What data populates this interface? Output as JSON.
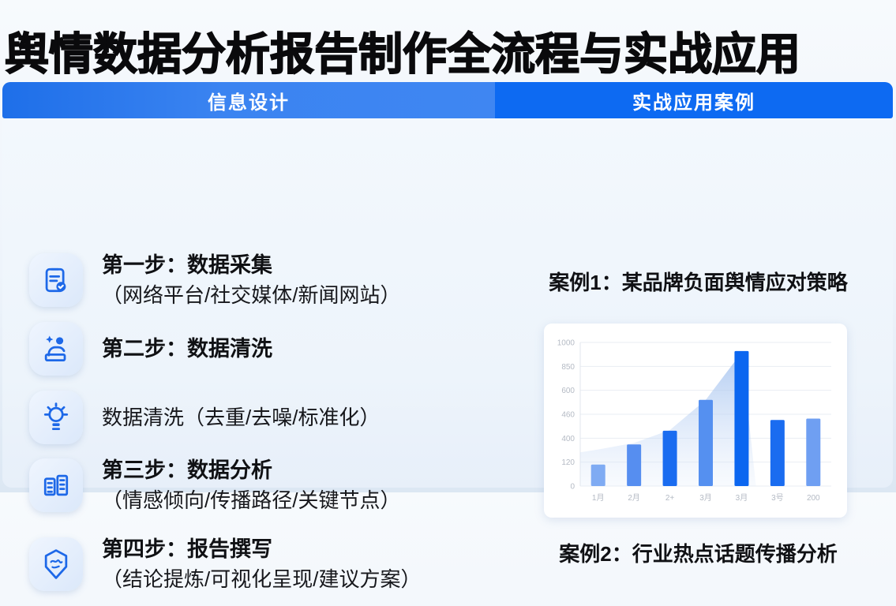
{
  "page": {
    "title": "舆情数据分析报告制作全流程与实战应用"
  },
  "left_panel": {
    "header": "信息设计",
    "steps": [
      {
        "icon": "clipboard-check-icon",
        "title": "第一步：数据采集",
        "subtitle": "（网络平台/社交媒体/新闻网站）"
      },
      {
        "icon": "person-sparkle-icon",
        "title": "第二步：数据清洗",
        "subtitle": ""
      },
      {
        "icon": "lightbulb-icon",
        "title": "数据清洗（去重/去噪/标准化）",
        "subtitle": ""
      },
      {
        "icon": "open-book-icon",
        "title": "第三步：数据分析",
        "subtitle": "（情感倾向/传播路径/关键节点）"
      },
      {
        "icon": "shield-badge-icon",
        "title": "第四步：报告撰写",
        "subtitle": "（结论提炼/可视化呈现/建议方案）"
      }
    ]
  },
  "right_panel": {
    "header": "实战应用案例",
    "case1_title": "案例1：某品牌负面舆情应对策略",
    "case2_title": "案例2：行业热点话题传播分析"
  },
  "chart_data": {
    "type": "bar",
    "title": "",
    "xlabel": "",
    "ylabel": "",
    "categories": [
      "1月",
      "2月",
      "2+",
      "3月",
      "3月",
      "3号",
      "200"
    ],
    "values": [
      150,
      290,
      385,
      600,
      940,
      460,
      470
    ],
    "bar_colors": [
      "#7fabf3",
      "#568ef0",
      "#1a6cf0",
      "#5590f0",
      "#0b66f0",
      "#1a6cf0",
      "#6f9ff2"
    ],
    "area_series": {
      "name": "trend-area",
      "profile": [
        [
          -0.5,
          235
        ],
        [
          0,
          255
        ],
        [
          1,
          300
        ],
        [
          2,
          390
        ],
        [
          3,
          600
        ],
        [
          4,
          930
        ],
        [
          4.4,
          0
        ]
      ]
    },
    "y_ticks": [
      "1000",
      "850",
      "600",
      "460",
      "400",
      "120",
      "0"
    ],
    "ylim": [
      0,
      1000
    ],
    "grid": true,
    "legend": "none"
  },
  "colors": {
    "header_left_blue": "#3b84f1",
    "header_right_blue": "#0d6af2",
    "icon_blue": "#1d68e8",
    "icon_tile_bg": "#dbe8fa",
    "tick_gray": "#b4bac4",
    "grid_gray": "#e9edf3",
    "title_black": "#0a0a0c",
    "panel_bg": "#f3f8fd"
  }
}
